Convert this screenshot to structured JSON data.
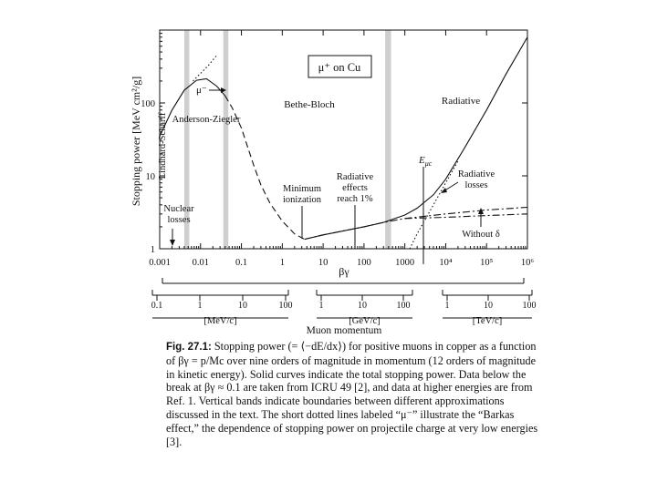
{
  "chart_data": {
    "type": "line",
    "scale": {
      "x": "log",
      "y": "log"
    },
    "xlabel": "βγ",
    "ylabel": "Stopping power [MeV cm²/g]",
    "xlim": [
      0.001,
      1000000
    ],
    "ylim": [
      1,
      1000
    ],
    "x_ticks": [
      "0.001",
      "0.01",
      "0.1",
      "1",
      "10",
      "100",
      "1000",
      "10⁴",
      "10⁵",
      "10⁶"
    ],
    "y_ticks": [
      "1",
      "10",
      "100"
    ],
    "legend_box": "μ⁺ on Cu",
    "regions": [
      "Lindhard-Scharff",
      "Anderson-Ziegler",
      "Bethe-Bloch",
      "Radiative"
    ],
    "bands": [
      [
        0.004,
        0.0053
      ],
      [
        0.036,
        0.048
      ],
      [
        330,
        460
      ]
    ],
    "series": [
      {
        "name": "",
        "style": "solid",
        "points": [
          [
            0.001,
            35
          ],
          [
            0.002,
            80
          ],
          [
            0.004,
            150
          ],
          [
            0.008,
            205
          ],
          [
            0.014,
            215
          ],
          [
            0.025,
            170
          ],
          [
            0.04,
            125
          ]
        ]
      },
      {
        "name": "",
        "style": "dashed",
        "points": [
          [
            0.04,
            125
          ],
          [
            0.06,
            85
          ],
          [
            0.1,
            45
          ],
          [
            0.2,
            14
          ],
          [
            0.3,
            7.5
          ],
          [
            0.5,
            4.2
          ],
          [
            1,
            2.4
          ],
          [
            2,
            1.6
          ],
          [
            3.5,
            1.35
          ]
        ]
      },
      {
        "name": "",
        "style": "solid",
        "points": [
          [
            3.5,
            1.35
          ],
          [
            10,
            1.55
          ],
          [
            30,
            1.75
          ],
          [
            100,
            2.0
          ],
          [
            300,
            2.3
          ],
          [
            1000,
            2.9
          ],
          [
            2000,
            3.6
          ],
          [
            5000,
            5.5
          ],
          [
            10000,
            9
          ],
          [
            30000,
            25
          ],
          [
            100000,
            80
          ],
          [
            300000,
            250
          ],
          [
            1000000,
            800
          ]
        ]
      },
      {
        "name": "",
        "style": "dash-dot",
        "points": [
          [
            3.5,
            1.35
          ],
          [
            10,
            1.55
          ],
          [
            30,
            1.75
          ],
          [
            100,
            2.0
          ],
          [
            300,
            2.3
          ],
          [
            1000,
            2.6
          ],
          [
            10000,
            3.0
          ],
          [
            100000,
            3.4
          ],
          [
            1000000,
            3.7
          ]
        ]
      },
      {
        "name": "",
        "style": "dash-dot",
        "points": [
          [
            1000,
            2.6
          ],
          [
            10000,
            2.7
          ],
          [
            100000,
            2.85
          ],
          [
            1000000,
            3.0
          ]
        ]
      },
      {
        "name": "",
        "style": "dotted",
        "points": [
          [
            1200,
            0.9
          ],
          [
            2000,
            1.6
          ],
          [
            5000,
            4
          ],
          [
            10000,
            8
          ],
          [
            20000,
            16
          ]
        ]
      },
      {
        "name": "",
        "style": "dotted",
        "points": [
          [
            0.0065,
            200
          ],
          [
            0.015,
            320
          ],
          [
            0.025,
            450
          ]
        ]
      }
    ],
    "annotations": [
      {
        "lines": [
          "μ⁻"
        ]
      },
      {
        "lines": [
          "Minimum",
          "ionization"
        ]
      },
      {
        "lines": [
          "Radiative",
          "effects",
          "reach 1%"
        ]
      },
      {
        "lines": [
          "E",
          "μc"
        ]
      },
      {
        "lines": [
          "Radiative",
          "losses"
        ]
      },
      {
        "lines": [
          "Without δ"
        ]
      },
      {
        "lines": [
          "Nuclear",
          "losses"
        ]
      }
    ],
    "momentum_axes": [
      {
        "unit": "[MeV/c]",
        "ticks": [
          "0.1",
          "1",
          "10",
          "100"
        ]
      },
      {
        "unit": "[GeV/c]",
        "ticks": [
          "1",
          "10",
          "100"
        ]
      },
      {
        "unit": "[TeV/c]",
        "ticks": [
          "1",
          "10",
          "100"
        ]
      }
    ],
    "momentum_label": "Muon momentum"
  },
  "caption": {
    "label": "Fig. 27.1:",
    "text": " Stopping power (= ⟨−dE/dx⟩) for positive muons in copper as a function of βγ = p/Mc over nine orders of magnitude in momentum (12 orders of magnitude in kinetic energy). Solid curves indicate the total stopping power. Data below the break at βγ ≈ 0.1 are taken from ICRU 49 [2], and data at higher energies are from Ref. 1. Vertical bands indicate boundaries between different approximations discussed in the text. The short dotted lines labeled “μ⁻” illustrate the “Barkas effect,” the dependence of stopping power on projectile charge at very low energies [3]."
  }
}
